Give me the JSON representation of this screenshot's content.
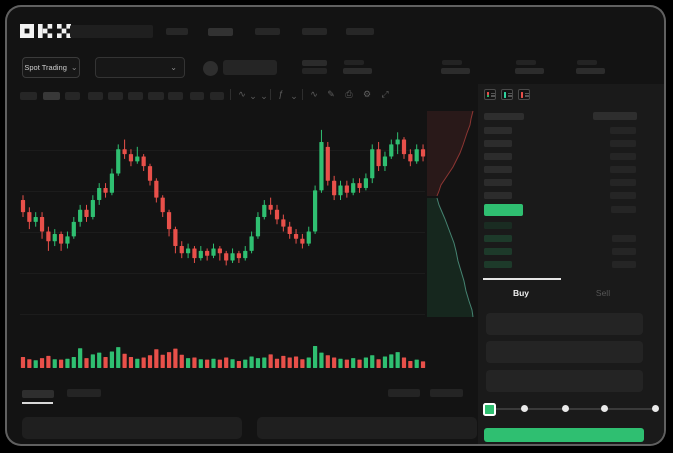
{
  "app": {
    "name": "OKX"
  },
  "header": {
    "market_selector": {
      "label": "Spot Trading"
    }
  },
  "glyphs": {
    "chevron_down": "⌄",
    "wave": "∿",
    "pencil": "✎",
    "gear": "⚙",
    "function": "ƒ",
    "camera": "⎙",
    "expand": "⤢"
  },
  "chart_data": {
    "type": "candlestick",
    "title": "",
    "xlabel": "",
    "ylabel": "",
    "axes_visible": false,
    "grid": "faint horizontal lines",
    "price_scale_note": "relative 0-100, no labels visible in screenshot",
    "up_color": "#2fbf71",
    "down_color": "#e8504a",
    "candles_ohlc": [
      [
        57,
        59,
        50,
        52
      ],
      [
        52,
        54,
        45,
        48
      ],
      [
        48,
        52,
        46,
        50
      ],
      [
        50,
        52,
        41,
        44
      ],
      [
        44,
        46,
        36,
        40
      ],
      [
        40,
        45,
        38,
        43
      ],
      [
        43,
        44,
        36,
        39
      ],
      [
        39,
        44,
        37,
        42
      ],
      [
        42,
        50,
        41,
        48
      ],
      [
        48,
        55,
        46,
        53
      ],
      [
        53,
        55,
        48,
        50
      ],
      [
        50,
        59,
        49,
        57
      ],
      [
        57,
        64,
        55,
        62
      ],
      [
        62,
        64,
        58,
        60
      ],
      [
        60,
        70,
        59,
        68
      ],
      [
        68,
        80,
        67,
        78
      ],
      [
        78,
        82,
        74,
        76
      ],
      [
        76,
        78,
        71,
        73
      ],
      [
        73,
        79,
        72,
        75
      ],
      [
        75,
        76,
        69,
        71
      ],
      [
        71,
        72,
        63,
        65
      ],
      [
        65,
        66,
        56,
        58
      ],
      [
        58,
        59,
        50,
        52
      ],
      [
        52,
        53,
        42,
        45
      ],
      [
        45,
        46,
        35,
        38
      ],
      [
        38,
        40,
        33,
        35
      ],
      [
        35,
        39,
        33,
        37
      ],
      [
        37,
        38,
        31,
        33
      ],
      [
        33,
        38,
        32,
        36
      ],
      [
        36,
        37,
        32,
        34
      ],
      [
        34,
        39,
        33,
        37
      ],
      [
        37,
        38,
        32,
        35
      ],
      [
        35,
        36,
        30,
        32
      ],
      [
        32,
        37,
        31,
        35
      ],
      [
        35,
        36,
        31,
        33
      ],
      [
        33,
        38,
        32,
        36
      ],
      [
        36,
        44,
        35,
        42
      ],
      [
        42,
        52,
        41,
        50
      ],
      [
        50,
        57,
        49,
        55
      ],
      [
        55,
        58,
        51,
        53
      ],
      [
        53,
        55,
        47,
        49
      ],
      [
        49,
        51,
        44,
        46
      ],
      [
        46,
        48,
        41,
        43
      ],
      [
        43,
        45,
        39,
        41
      ],
      [
        41,
        43,
        37,
        39
      ],
      [
        39,
        46,
        38,
        44
      ],
      [
        44,
        63,
        43,
        61
      ],
      [
        61,
        86,
        60,
        81
      ],
      [
        79,
        81,
        63,
        65
      ],
      [
        65,
        67,
        57,
        59
      ],
      [
        59,
        65,
        57,
        63
      ],
      [
        63,
        65,
        58,
        60
      ],
      [
        60,
        66,
        59,
        64
      ],
      [
        64,
        66,
        60,
        62
      ],
      [
        62,
        68,
        61,
        66
      ],
      [
        66,
        80,
        64,
        78
      ],
      [
        78,
        81,
        69,
        71
      ],
      [
        71,
        77,
        69,
        75
      ],
      [
        75,
        82,
        74,
        80
      ],
      [
        80,
        85,
        76,
        82
      ],
      [
        82,
        83,
        74,
        76
      ],
      [
        76,
        78,
        71,
        73
      ],
      [
        73,
        80,
        72,
        78
      ],
      [
        78,
        80,
        73,
        75
      ]
    ],
    "volumes": [
      50,
      40,
      35,
      45,
      55,
      40,
      38,
      42,
      50,
      90,
      45,
      62,
      70,
      50,
      75,
      95,
      65,
      50,
      42,
      48,
      58,
      85,
      60,
      72,
      88,
      60,
      45,
      48,
      40,
      38,
      42,
      38,
      48,
      40,
      32,
      38,
      52,
      45,
      48,
      62,
      42,
      55,
      48,
      52,
      40,
      48,
      100,
      70,
      58,
      48,
      42,
      38,
      45,
      38,
      48,
      58,
      40,
      52,
      62,
      72,
      48,
      32,
      38,
      30
    ]
  },
  "depth_chart": {
    "type": "area",
    "orientation": "vertical, asks on top / bids below, cumulative toward edges",
    "ask_color": "#e8504a",
    "bid_color": "#2fbf71",
    "asks_curve": [
      [
        46,
        2
      ],
      [
        44,
        10
      ],
      [
        43,
        16
      ],
      [
        40,
        24
      ],
      [
        38,
        30
      ],
      [
        36,
        36
      ],
      [
        33,
        44
      ],
      [
        29,
        52
      ],
      [
        26,
        58
      ],
      [
        22,
        64
      ],
      [
        18,
        70
      ],
      [
        14,
        76
      ],
      [
        12,
        82
      ],
      [
        10,
        87
      ]
    ],
    "bids_curve": [
      [
        10,
        89
      ],
      [
        12,
        96
      ],
      [
        15,
        103
      ],
      [
        18,
        110
      ],
      [
        21,
        118
      ],
      [
        24,
        126
      ],
      [
        27,
        134
      ],
      [
        29,
        142
      ],
      [
        31,
        152
      ],
      [
        34,
        162
      ],
      [
        37,
        172
      ],
      [
        39,
        182
      ],
      [
        42,
        192
      ],
      [
        45,
        201
      ],
      [
        46,
        208
      ]
    ]
  },
  "order_book": {
    "view_icons": [
      "order-book-combined",
      "order-book-bids-only",
      "order-book-asks-only"
    ],
    "header": {
      "price_col_w": 40,
      "amount_col_w": 44
    },
    "asks": [
      {
        "price_w": 28,
        "amount_w": 26
      },
      {
        "price_w": 28,
        "amount_w": 26
      },
      {
        "price_w": 28,
        "amount_w": 26
      },
      {
        "price_w": 28,
        "amount_w": 26
      },
      {
        "price_w": 28,
        "amount_w": 26
      },
      {
        "price_w": 28,
        "amount_w": 26
      }
    ],
    "last_price_bar": {
      "w": 39,
      "h": 12,
      "color": "#2fbf71",
      "amount_w": 25
    },
    "bids": [
      {
        "price_w": 28,
        "amount_w": 0,
        "dim": true
      },
      {
        "price_w": 28,
        "amount_w": 24,
        "dim": false
      },
      {
        "price_w": 28,
        "amount_w": 24,
        "dim": false
      },
      {
        "price_w": 28,
        "amount_w": 24,
        "dim": false
      }
    ]
  },
  "trade_panel": {
    "tabs": [
      {
        "label": "Buy"
      },
      {
        "label": "Sell"
      }
    ],
    "active_tab": "Buy",
    "input_count": 3,
    "slider": {
      "stops": 5,
      "active_index": 0,
      "handle_color": "#2fbf71"
    },
    "submit_button": {
      "label": "",
      "color": "#2fbf71"
    }
  },
  "colors": {
    "bg": "#131313",
    "panel_bg": "#1a1a1a",
    "green": "#2fbf71",
    "red": "#e8504a",
    "placeholder": "#272727"
  }
}
